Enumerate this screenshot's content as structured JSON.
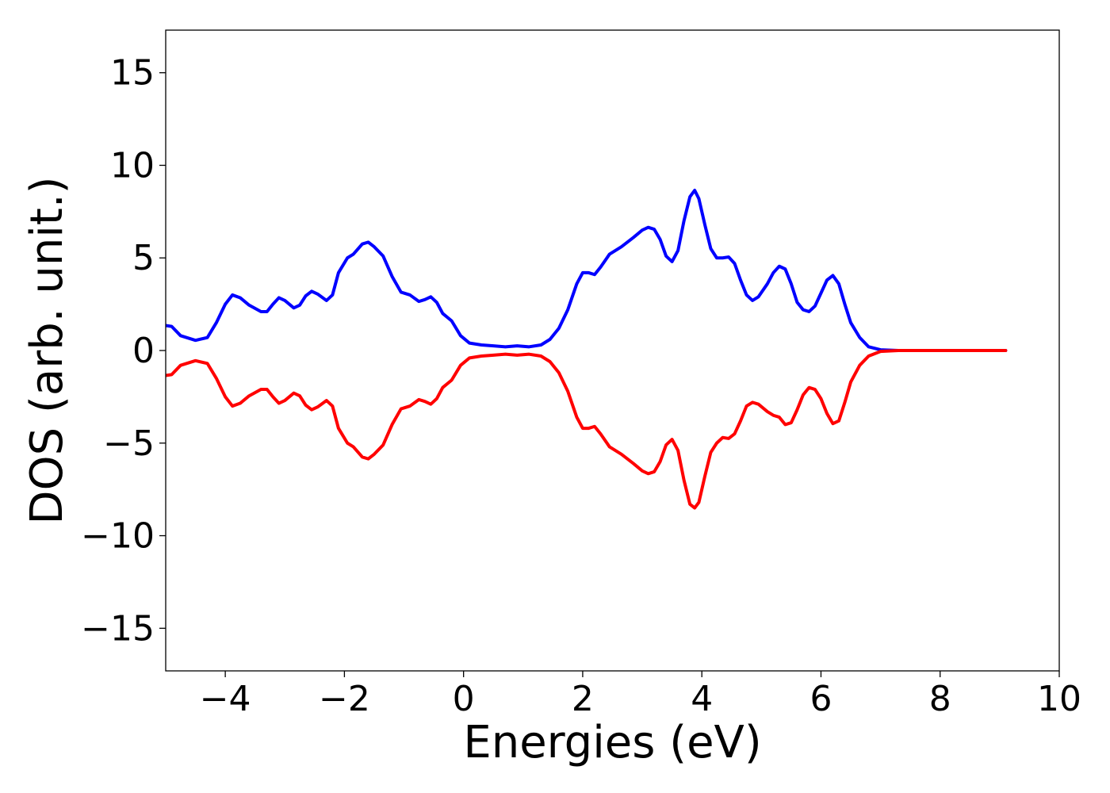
{
  "chart_data": {
    "type": "line",
    "xlabel": "Energies (eV)",
    "ylabel": "DOS (arb. unit.)",
    "xlim": [
      -5,
      10
    ],
    "ylim": [
      -17.3,
      17.3
    ],
    "grid": false,
    "xticks": [
      -4,
      -2,
      0,
      2,
      4,
      6,
      8,
      10
    ],
    "yticks": [
      15,
      10,
      5,
      0,
      -5,
      -10,
      -15
    ],
    "xtick_labels": [
      "−4",
      "−2",
      "0",
      "2",
      "4",
      "6",
      "8",
      "10"
    ],
    "ytick_labels": [
      "15",
      "10",
      "5",
      "0",
      "−5",
      "−10",
      "−15"
    ],
    "series": [
      {
        "color": "#0000ff",
        "points": [
          [
            -5.0,
            1.35
          ],
          [
            -4.9,
            1.3
          ],
          [
            -4.75,
            0.8
          ],
          [
            -4.5,
            0.55
          ],
          [
            -4.3,
            0.7
          ],
          [
            -4.15,
            1.5
          ],
          [
            -4.0,
            2.5
          ],
          [
            -3.88,
            3.0
          ],
          [
            -3.75,
            2.85
          ],
          [
            -3.6,
            2.45
          ],
          [
            -3.4,
            2.1
          ],
          [
            -3.3,
            2.1
          ],
          [
            -3.2,
            2.5
          ],
          [
            -3.1,
            2.85
          ],
          [
            -3.0,
            2.7
          ],
          [
            -2.85,
            2.3
          ],
          [
            -2.75,
            2.45
          ],
          [
            -2.65,
            2.95
          ],
          [
            -2.55,
            3.2
          ],
          [
            -2.45,
            3.05
          ],
          [
            -2.3,
            2.7
          ],
          [
            -2.2,
            3.0
          ],
          [
            -2.1,
            4.2
          ],
          [
            -1.95,
            5.0
          ],
          [
            -1.85,
            5.2
          ],
          [
            -1.7,
            5.75
          ],
          [
            -1.6,
            5.85
          ],
          [
            -1.5,
            5.6
          ],
          [
            -1.35,
            5.1
          ],
          [
            -1.2,
            4.0
          ],
          [
            -1.05,
            3.15
          ],
          [
            -0.9,
            3.0
          ],
          [
            -0.75,
            2.65
          ],
          [
            -0.65,
            2.75
          ],
          [
            -0.55,
            2.9
          ],
          [
            -0.45,
            2.6
          ],
          [
            -0.35,
            2.0
          ],
          [
            -0.2,
            1.6
          ],
          [
            -0.05,
            0.8
          ],
          [
            0.1,
            0.4
          ],
          [
            0.3,
            0.3
          ],
          [
            0.5,
            0.25
          ],
          [
            0.7,
            0.2
          ],
          [
            0.9,
            0.25
          ],
          [
            1.1,
            0.2
          ],
          [
            1.3,
            0.3
          ],
          [
            1.45,
            0.6
          ],
          [
            1.6,
            1.2
          ],
          [
            1.75,
            2.2
          ],
          [
            1.9,
            3.6
          ],
          [
            2.0,
            4.2
          ],
          [
            2.1,
            4.2
          ],
          [
            2.2,
            4.1
          ],
          [
            2.3,
            4.5
          ],
          [
            2.45,
            5.2
          ],
          [
            2.65,
            5.6
          ],
          [
            2.85,
            6.1
          ],
          [
            3.0,
            6.5
          ],
          [
            3.1,
            6.65
          ],
          [
            3.2,
            6.55
          ],
          [
            3.3,
            6.0
          ],
          [
            3.4,
            5.1
          ],
          [
            3.5,
            4.8
          ],
          [
            3.6,
            5.4
          ],
          [
            3.7,
            7.0
          ],
          [
            3.8,
            8.3
          ],
          [
            3.88,
            8.65
          ],
          [
            3.95,
            8.2
          ],
          [
            4.05,
            6.8
          ],
          [
            4.15,
            5.5
          ],
          [
            4.25,
            5.0
          ],
          [
            4.35,
            5.0
          ],
          [
            4.45,
            5.05
          ],
          [
            4.55,
            4.7
          ],
          [
            4.65,
            3.8
          ],
          [
            4.75,
            3.0
          ],
          [
            4.85,
            2.7
          ],
          [
            4.95,
            2.9
          ],
          [
            5.1,
            3.6
          ],
          [
            5.2,
            4.2
          ],
          [
            5.3,
            4.55
          ],
          [
            5.4,
            4.4
          ],
          [
            5.5,
            3.6
          ],
          [
            5.6,
            2.6
          ],
          [
            5.7,
            2.2
          ],
          [
            5.8,
            2.1
          ],
          [
            5.9,
            2.4
          ],
          [
            6.0,
            3.1
          ],
          [
            6.1,
            3.8
          ],
          [
            6.2,
            4.05
          ],
          [
            6.3,
            3.6
          ],
          [
            6.4,
            2.5
          ],
          [
            6.5,
            1.5
          ],
          [
            6.65,
            0.7
          ],
          [
            6.8,
            0.2
          ],
          [
            7.0,
            0.04
          ],
          [
            7.3,
            0.0
          ],
          [
            9.1,
            0.0
          ]
        ]
      },
      {
        "color": "#ff0000",
        "points": [
          [
            -5.0,
            -1.35
          ],
          [
            -4.9,
            -1.3
          ],
          [
            -4.75,
            -0.8
          ],
          [
            -4.5,
            -0.55
          ],
          [
            -4.3,
            -0.7
          ],
          [
            -4.15,
            -1.5
          ],
          [
            -4.0,
            -2.5
          ],
          [
            -3.88,
            -3.0
          ],
          [
            -3.75,
            -2.85
          ],
          [
            -3.6,
            -2.45
          ],
          [
            -3.4,
            -2.1
          ],
          [
            -3.3,
            -2.1
          ],
          [
            -3.2,
            -2.5
          ],
          [
            -3.1,
            -2.85
          ],
          [
            -3.0,
            -2.7
          ],
          [
            -2.85,
            -2.3
          ],
          [
            -2.75,
            -2.45
          ],
          [
            -2.65,
            -2.95
          ],
          [
            -2.55,
            -3.2
          ],
          [
            -2.45,
            -3.05
          ],
          [
            -2.3,
            -2.7
          ],
          [
            -2.2,
            -3.0
          ],
          [
            -2.1,
            -4.2
          ],
          [
            -1.95,
            -5.0
          ],
          [
            -1.85,
            -5.2
          ],
          [
            -1.7,
            -5.75
          ],
          [
            -1.6,
            -5.85
          ],
          [
            -1.5,
            -5.6
          ],
          [
            -1.35,
            -5.1
          ],
          [
            -1.2,
            -4.0
          ],
          [
            -1.05,
            -3.15
          ],
          [
            -0.9,
            -3.0
          ],
          [
            -0.75,
            -2.65
          ],
          [
            -0.65,
            -2.75
          ],
          [
            -0.55,
            -2.9
          ],
          [
            -0.45,
            -2.6
          ],
          [
            -0.35,
            -2.0
          ],
          [
            -0.2,
            -1.6
          ],
          [
            -0.05,
            -0.8
          ],
          [
            0.1,
            -0.4
          ],
          [
            0.3,
            -0.3
          ],
          [
            0.5,
            -0.25
          ],
          [
            0.7,
            -0.2
          ],
          [
            0.9,
            -0.25
          ],
          [
            1.1,
            -0.2
          ],
          [
            1.3,
            -0.3
          ],
          [
            1.45,
            -0.6
          ],
          [
            1.6,
            -1.2
          ],
          [
            1.75,
            -2.2
          ],
          [
            1.9,
            -3.6
          ],
          [
            2.0,
            -4.2
          ],
          [
            2.1,
            -4.2
          ],
          [
            2.2,
            -4.1
          ],
          [
            2.3,
            -4.5
          ],
          [
            2.45,
            -5.2
          ],
          [
            2.65,
            -5.6
          ],
          [
            2.85,
            -6.1
          ],
          [
            3.0,
            -6.5
          ],
          [
            3.1,
            -6.65
          ],
          [
            3.2,
            -6.55
          ],
          [
            3.3,
            -6.0
          ],
          [
            3.4,
            -5.1
          ],
          [
            3.5,
            -4.8
          ],
          [
            3.6,
            -5.4
          ],
          [
            3.7,
            -7.0
          ],
          [
            3.8,
            -8.3
          ],
          [
            3.88,
            -8.5
          ],
          [
            3.95,
            -8.2
          ],
          [
            4.05,
            -6.8
          ],
          [
            4.15,
            -5.5
          ],
          [
            4.25,
            -5.0
          ],
          [
            4.35,
            -4.7
          ],
          [
            4.45,
            -4.75
          ],
          [
            4.55,
            -4.5
          ],
          [
            4.65,
            -3.8
          ],
          [
            4.75,
            -3.0
          ],
          [
            4.85,
            -2.8
          ],
          [
            4.95,
            -2.9
          ],
          [
            5.1,
            -3.3
          ],
          [
            5.2,
            -3.5
          ],
          [
            5.3,
            -3.6
          ],
          [
            5.4,
            -4.0
          ],
          [
            5.5,
            -3.9
          ],
          [
            5.6,
            -3.2
          ],
          [
            5.7,
            -2.4
          ],
          [
            5.8,
            -2.0
          ],
          [
            5.9,
            -2.1
          ],
          [
            6.0,
            -2.6
          ],
          [
            6.1,
            -3.4
          ],
          [
            6.2,
            -3.95
          ],
          [
            6.3,
            -3.8
          ],
          [
            6.4,
            -2.8
          ],
          [
            6.5,
            -1.7
          ],
          [
            6.65,
            -0.8
          ],
          [
            6.8,
            -0.3
          ],
          [
            7.0,
            -0.05
          ],
          [
            7.3,
            0.0
          ],
          [
            9.1,
            0.0
          ]
        ]
      }
    ]
  }
}
